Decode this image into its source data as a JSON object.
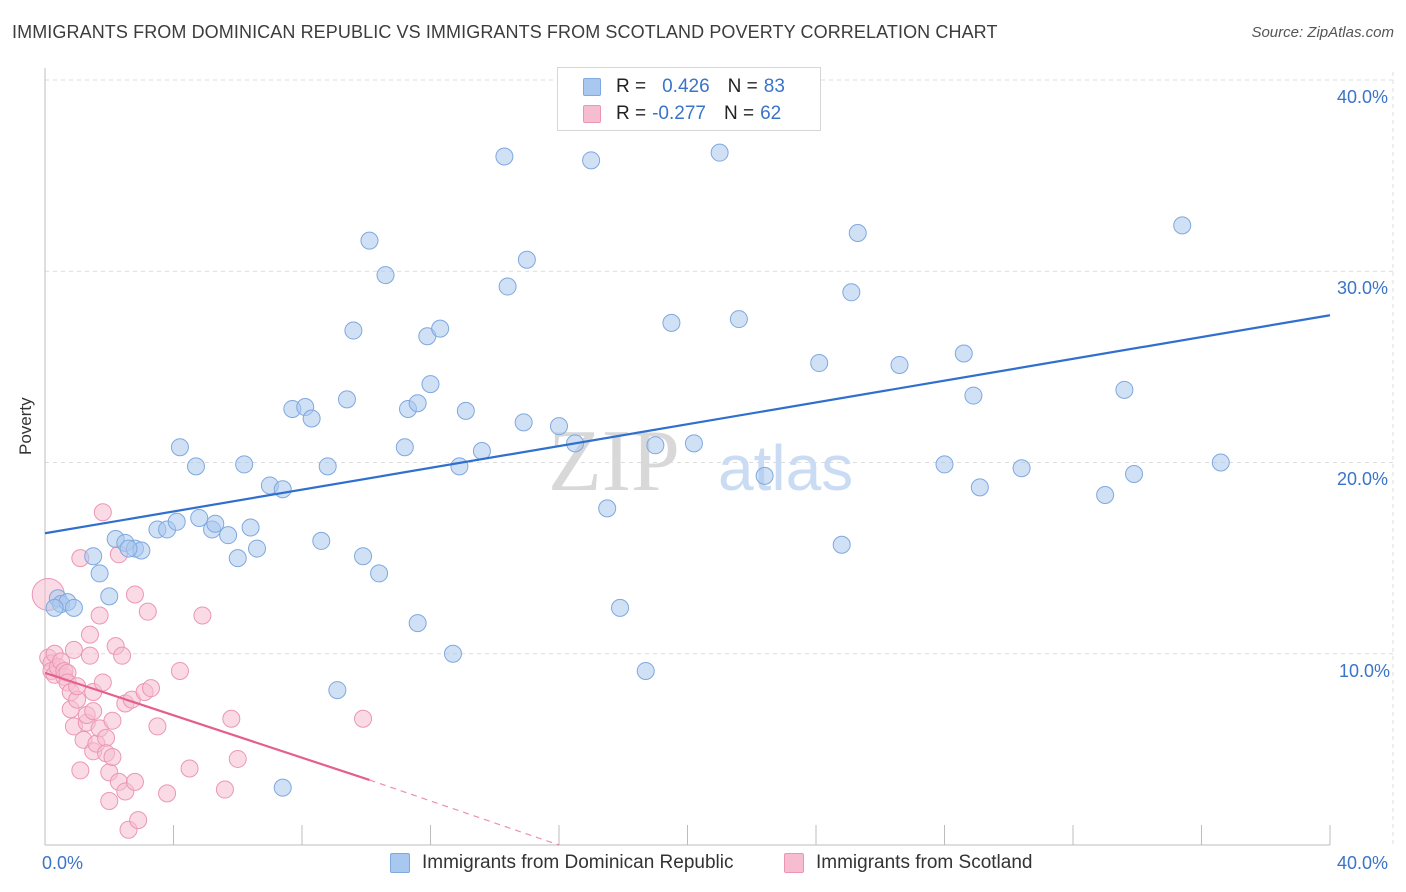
{
  "title": "IMMIGRANTS FROM DOMINICAN REPUBLIC VS IMMIGRANTS FROM SCOTLAND POVERTY CORRELATION CHART",
  "source": "Source: ZipAtlas.com",
  "watermark": {
    "zip": "ZIP",
    "atlas": "atlas"
  },
  "legend_top": {
    "rows": [
      {
        "r_label": "R =",
        "r_value": "0.426",
        "n_label": "N =",
        "n_value": "83"
      },
      {
        "r_label": "R =",
        "r_value": "-0.277",
        "n_label": "N =",
        "n_value": "62"
      }
    ]
  },
  "legend_bottom": {
    "items": [
      {
        "label": "Immigrants from Dominican Republic"
      },
      {
        "label": "Immigrants from Scotland"
      }
    ]
  },
  "colors": {
    "blue_fill": "#a9c8ef",
    "blue_stroke": "#7fa8df",
    "blue_line": "#2f6fce",
    "pink_fill": "#f6bdd0",
    "pink_stroke": "#ec96b4",
    "pink_line": "#e45f8e",
    "tick_text": "#3a74c9",
    "grid": "#dcdcdc"
  },
  "chart_data": {
    "type": "scatter",
    "title": "IMMIGRANTS FROM DOMINICAN REPUBLIC VS IMMIGRANTS FROM SCOTLAND POVERTY CORRELATION CHART",
    "xlabel": "",
    "ylabel": "Poverty",
    "xlim": [
      0,
      40
    ],
    "ylim": [
      0,
      40
    ],
    "x_tick_labels": [
      "0.0%",
      "40.0%"
    ],
    "y_tick_labels": [
      "10.0%",
      "20.0%",
      "30.0%",
      "40.0%"
    ],
    "y_ticks": [
      10,
      20,
      30,
      40
    ],
    "grid": true,
    "legend_position": "bottom",
    "series": [
      {
        "name": "Immigrants from Dominican Republic",
        "r": 0.426,
        "n": 83,
        "trend": {
          "x": [
            0,
            40
          ],
          "y": [
            16.3,
            27.7
          ],
          "dashed_to": null
        },
        "points": [
          [
            0.4,
            12.9
          ],
          [
            0.5,
            12.6
          ],
          [
            0.7,
            12.7
          ],
          [
            0.9,
            12.4
          ],
          [
            1.5,
            15.1
          ],
          [
            1.7,
            14.2
          ],
          [
            2.0,
            13.0
          ],
          [
            2.2,
            16.0
          ],
          [
            2.5,
            15.8
          ],
          [
            2.8,
            15.5
          ],
          [
            3.0,
            15.4
          ],
          [
            3.5,
            16.5
          ],
          [
            3.8,
            16.5
          ],
          [
            4.1,
            16.9
          ],
          [
            4.2,
            20.8
          ],
          [
            4.7,
            19.8
          ],
          [
            4.8,
            17.1
          ],
          [
            5.2,
            16.5
          ],
          [
            5.3,
            16.8
          ],
          [
            5.7,
            16.2
          ],
          [
            6.0,
            15.0
          ],
          [
            6.2,
            19.9
          ],
          [
            6.4,
            16.6
          ],
          [
            6.6,
            15.5
          ],
          [
            7.0,
            18.8
          ],
          [
            7.4,
            18.6
          ],
          [
            7.7,
            22.8
          ],
          [
            8.1,
            22.9
          ],
          [
            8.3,
            22.3
          ],
          [
            8.6,
            15.9
          ],
          [
            8.8,
            19.8
          ],
          [
            9.1,
            8.1
          ],
          [
            9.4,
            23.3
          ],
          [
            9.6,
            26.9
          ],
          [
            9.9,
            15.1
          ],
          [
            10.1,
            31.6
          ],
          [
            10.4,
            14.2
          ],
          [
            10.6,
            29.8
          ],
          [
            11.2,
            20.8
          ],
          [
            11.3,
            22.8
          ],
          [
            11.6,
            23.1
          ],
          [
            11.6,
            11.6
          ],
          [
            11.9,
            26.6
          ],
          [
            12.0,
            24.1
          ],
          [
            12.3,
            27.0
          ],
          [
            12.7,
            10.0
          ],
          [
            12.9,
            19.8
          ],
          [
            13.1,
            22.7
          ],
          [
            13.6,
            20.6
          ],
          [
            14.3,
            36.0
          ],
          [
            14.4,
            29.2
          ],
          [
            14.9,
            22.1
          ],
          [
            15.0,
            30.6
          ],
          [
            16.0,
            21.9
          ],
          [
            16.5,
            21.0
          ],
          [
            17.0,
            35.8
          ],
          [
            17.5,
            17.6
          ],
          [
            17.9,
            12.4
          ],
          [
            18.7,
            9.1
          ],
          [
            19.0,
            20.9
          ],
          [
            19.5,
            27.3
          ],
          [
            20.2,
            21.0
          ],
          [
            21.0,
            36.2
          ],
          [
            21.6,
            27.5
          ],
          [
            22.4,
            19.3
          ],
          [
            24.1,
            25.2
          ],
          [
            24.8,
            15.7
          ],
          [
            25.3,
            32.0
          ],
          [
            25.1,
            28.9
          ],
          [
            26.6,
            25.1
          ],
          [
            28.0,
            19.9
          ],
          [
            28.6,
            25.7
          ],
          [
            28.9,
            23.5
          ],
          [
            29.1,
            18.7
          ],
          [
            30.4,
            19.7
          ],
          [
            33.0,
            18.3
          ],
          [
            33.6,
            23.8
          ],
          [
            33.9,
            19.4
          ],
          [
            35.4,
            32.4
          ],
          [
            36.6,
            20.0
          ],
          [
            0.3,
            12.4
          ],
          [
            7.4,
            3.0
          ],
          [
            2.6,
            15.5
          ]
        ]
      },
      {
        "name": "Immigrants from Scotland",
        "r": -0.277,
        "n": 62,
        "trend": {
          "x": [
            0,
            10.1
          ],
          "y": [
            9.0,
            3.4
          ],
          "dashed_to": [
            16.0,
            0.0
          ]
        },
        "points": [
          [
            0.1,
            9.8
          ],
          [
            0.2,
            9.5
          ],
          [
            0.2,
            9.1
          ],
          [
            0.3,
            10.0
          ],
          [
            0.3,
            8.9
          ],
          [
            0.4,
            9.3
          ],
          [
            0.5,
            9.6
          ],
          [
            0.6,
            8.8
          ],
          [
            0.6,
            9.1
          ],
          [
            0.7,
            9.0
          ],
          [
            0.7,
            8.5
          ],
          [
            0.8,
            7.1
          ],
          [
            0.8,
            8.0
          ],
          [
            0.9,
            10.2
          ],
          [
            0.9,
            6.2
          ],
          [
            1.0,
            7.6
          ],
          [
            1.0,
            8.3
          ],
          [
            1.1,
            15.0
          ],
          [
            1.1,
            3.9
          ],
          [
            1.2,
            5.5
          ],
          [
            1.3,
            6.4
          ],
          [
            1.3,
            6.8
          ],
          [
            1.4,
            11.0
          ],
          [
            1.4,
            9.9
          ],
          [
            1.5,
            8.0
          ],
          [
            1.5,
            7.0
          ],
          [
            1.5,
            4.9
          ],
          [
            1.6,
            5.3
          ],
          [
            1.7,
            6.1
          ],
          [
            1.7,
            12.0
          ],
          [
            1.8,
            8.5
          ],
          [
            1.8,
            17.4
          ],
          [
            1.9,
            5.6
          ],
          [
            1.9,
            4.8
          ],
          [
            2.0,
            3.8
          ],
          [
            2.0,
            2.3
          ],
          [
            2.1,
            4.6
          ],
          [
            2.1,
            6.5
          ],
          [
            2.2,
            10.4
          ],
          [
            2.3,
            15.2
          ],
          [
            2.3,
            3.3
          ],
          [
            2.4,
            9.9
          ],
          [
            2.5,
            2.8
          ],
          [
            2.5,
            7.4
          ],
          [
            2.6,
            0.8
          ],
          [
            2.7,
            7.6
          ],
          [
            2.8,
            3.3
          ],
          [
            2.8,
            13.1
          ],
          [
            2.9,
            1.3
          ],
          [
            3.1,
            8.0
          ],
          [
            3.2,
            12.2
          ],
          [
            3.3,
            8.2
          ],
          [
            3.5,
            6.2
          ],
          [
            3.8,
            2.7
          ],
          [
            4.2,
            9.1
          ],
          [
            4.5,
            4.0
          ],
          [
            4.9,
            12.0
          ],
          [
            5.6,
            2.9
          ],
          [
            5.8,
            6.6
          ],
          [
            6.0,
            4.5
          ],
          [
            9.9,
            6.6
          ],
          [
            0.1,
            13.1
          ]
        ]
      }
    ]
  }
}
